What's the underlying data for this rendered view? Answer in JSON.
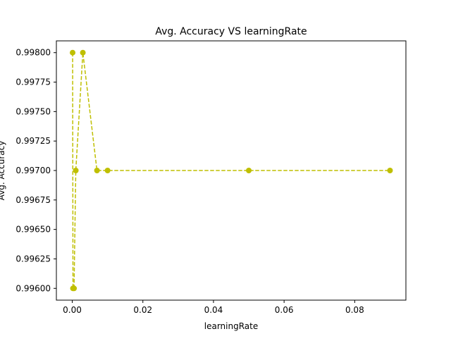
{
  "chart_data": {
    "type": "line",
    "title": "Avg. Accuracy VS learningRate",
    "xlabel": "learningRate",
    "ylabel": "Avg. Accuracy",
    "xlim": [
      -0.0045,
      0.0945
    ],
    "ylim": [
      0.9959,
      0.9981
    ],
    "x_ticks": [
      0.0,
      0.02,
      0.04,
      0.06,
      0.08
    ],
    "x_tick_labels": [
      "0.00",
      "0.02",
      "0.04",
      "0.06",
      "0.08"
    ],
    "y_ticks": [
      0.996,
      0.99625,
      0.9965,
      0.99675,
      0.997,
      0.99725,
      0.9975,
      0.99775,
      0.998
    ],
    "y_tick_labels": [
      "0.99600",
      "0.99625",
      "0.99650",
      "0.99675",
      "0.99700",
      "0.99725",
      "0.99750",
      "0.99775",
      "0.99800"
    ],
    "grid": false,
    "series": [
      {
        "color": "#bfbf00",
        "linestyle": "dashed",
        "marker": "circle",
        "x": [
          0.0001,
          0.0002,
          0.0005,
          0.001,
          0.003,
          0.007,
          0.01,
          0.05,
          0.09
        ],
        "y": [
          0.998,
          0.996,
          0.996,
          0.997,
          0.998,
          0.997,
          0.997,
          0.997,
          0.997
        ]
      }
    ]
  }
}
